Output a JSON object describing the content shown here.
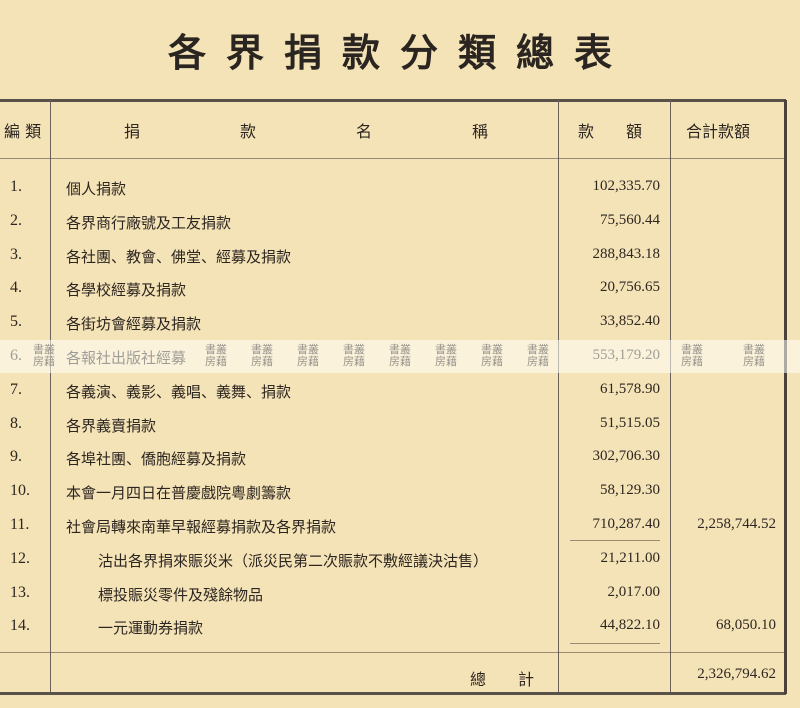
{
  "title": "各界捐款分類總表",
  "headers": {
    "index": "編 類",
    "name": [
      "捐",
      "款",
      "名",
      "稱"
    ],
    "amount": "款　　額",
    "total": "合計款額"
  },
  "rows": [
    {
      "no": "1.",
      "name": "個人捐款",
      "amount": "102,335.70",
      "total": ""
    },
    {
      "no": "2.",
      "name": "各界商行廠號及工友捐款",
      "amount": "75,560.44",
      "total": ""
    },
    {
      "no": "3.",
      "name": "各社團、教會、佛堂、經募及捐款",
      "amount": "288,843.18",
      "total": ""
    },
    {
      "no": "4.",
      "name": "各學校經募及捐款",
      "amount": "20,756.65",
      "total": ""
    },
    {
      "no": "5.",
      "name": "各街坊會經募及捐款",
      "amount": "33,852.40",
      "total": ""
    },
    {
      "no": "6.",
      "name": "各報社出版社經募",
      "amount": "553,179.20",
      "total": ""
    },
    {
      "no": "7.",
      "name": "各義演、義影、義唱、義舞、捐款",
      "amount": "61,578.90",
      "total": ""
    },
    {
      "no": "8.",
      "name": "各界義賣捐款",
      "amount": "51,515.05",
      "total": ""
    },
    {
      "no": "9.",
      "name": "各埠社團、僑胞經募及捐款",
      "amount": "302,706.30",
      "total": ""
    },
    {
      "no": "10.",
      "name": "本會一月四日在普慶戲院粵劇籌款",
      "amount": "58,129.30",
      "total": ""
    },
    {
      "no": "11.",
      "name": "社會局轉來南華早報經募捐款及各界捐款",
      "amount": "710,287.40",
      "total": "2,258,744.52"
    },
    {
      "no": "12.",
      "name": "沽出各界捐來賑災米（派災民第二次賑款不敷經議決沽售）",
      "amount": "21,211.00",
      "total": "",
      "indent": true
    },
    {
      "no": "13.",
      "name": "標投賑災零件及殘餘物品",
      "amount": "2,017.00",
      "total": "",
      "indent": true
    },
    {
      "no": "14.",
      "name": "一元運動券捐款",
      "amount": "44,822.10",
      "total": "68,050.10",
      "indent": true
    }
  ],
  "grand_total": {
    "label": "總　　計",
    "value": "2,326,794.62"
  },
  "watermark": "書叢房藉"
}
